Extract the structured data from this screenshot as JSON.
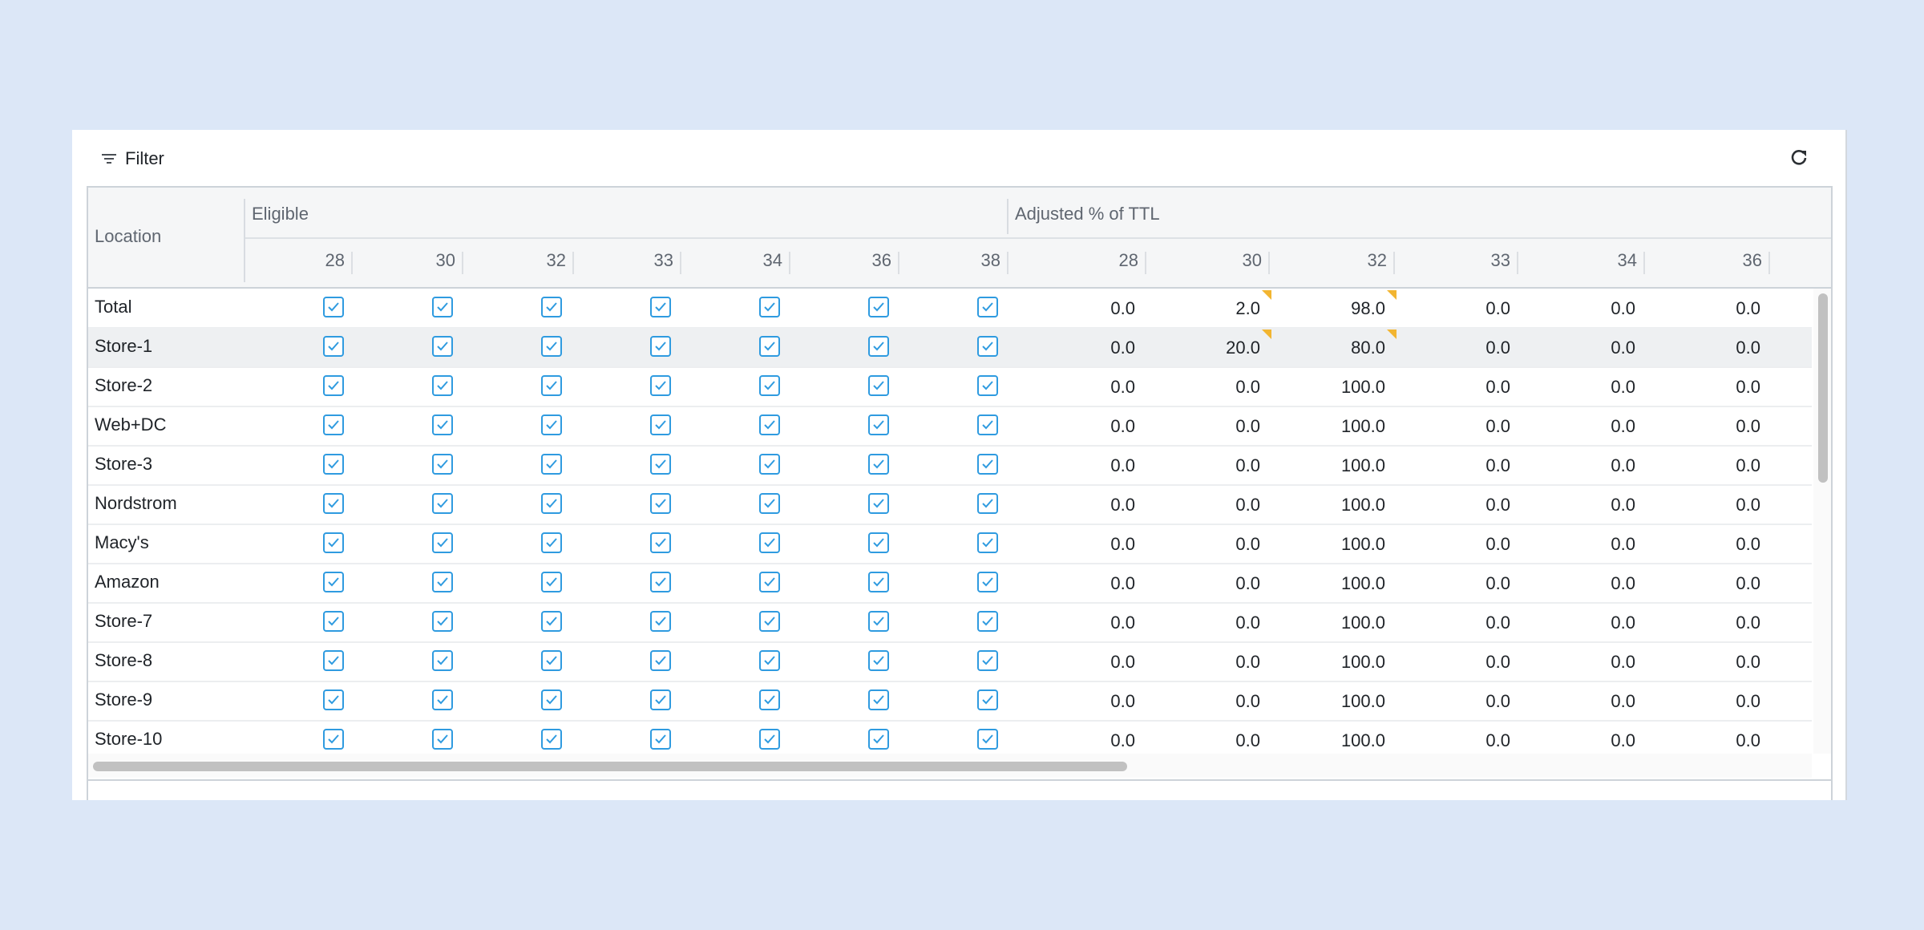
{
  "toolbar": {
    "filter_label": "Filter",
    "filter_icon": "filter-icon",
    "refresh_icon": "refresh-icon"
  },
  "header": {
    "location_label": "Location",
    "groups": [
      "Eligible",
      "Adjusted % of TTL"
    ],
    "eligible_sizes": [
      "28",
      "30",
      "32",
      "33",
      "34",
      "36",
      "38"
    ],
    "adjusted_sizes": [
      "28",
      "30",
      "32",
      "33",
      "34",
      "36"
    ]
  },
  "rows": [
    {
      "location": "Total",
      "eligible": [
        true,
        true,
        true,
        true,
        true,
        true,
        true
      ],
      "adjusted": [
        "0.0",
        "2.0",
        "98.0",
        "0.0",
        "0.0",
        "0.0"
      ],
      "flags": [
        false,
        true,
        true,
        false,
        false,
        false
      ]
    },
    {
      "location": "Store-1",
      "eligible": [
        true,
        true,
        true,
        true,
        true,
        true,
        true
      ],
      "adjusted": [
        "0.0",
        "20.0",
        "80.0",
        "0.0",
        "0.0",
        "0.0"
      ],
      "flags": [
        false,
        true,
        true,
        false,
        false,
        false
      ],
      "selected": true
    },
    {
      "location": "Store-2",
      "eligible": [
        true,
        true,
        true,
        true,
        true,
        true,
        true
      ],
      "adjusted": [
        "0.0",
        "0.0",
        "100.0",
        "0.0",
        "0.0",
        "0.0"
      ],
      "flags": [
        false,
        false,
        false,
        false,
        false,
        false
      ]
    },
    {
      "location": "Web+DC",
      "eligible": [
        true,
        true,
        true,
        true,
        true,
        true,
        true
      ],
      "adjusted": [
        "0.0",
        "0.0",
        "100.0",
        "0.0",
        "0.0",
        "0.0"
      ],
      "flags": [
        false,
        false,
        false,
        false,
        false,
        false
      ]
    },
    {
      "location": "Store-3",
      "eligible": [
        true,
        true,
        true,
        true,
        true,
        true,
        true
      ],
      "adjusted": [
        "0.0",
        "0.0",
        "100.0",
        "0.0",
        "0.0",
        "0.0"
      ],
      "flags": [
        false,
        false,
        false,
        false,
        false,
        false
      ]
    },
    {
      "location": "Nordstrom",
      "eligible": [
        true,
        true,
        true,
        true,
        true,
        true,
        true
      ],
      "adjusted": [
        "0.0",
        "0.0",
        "100.0",
        "0.0",
        "0.0",
        "0.0"
      ],
      "flags": [
        false,
        false,
        false,
        false,
        false,
        false
      ]
    },
    {
      "location": "Macy's",
      "eligible": [
        true,
        true,
        true,
        true,
        true,
        true,
        true
      ],
      "adjusted": [
        "0.0",
        "0.0",
        "100.0",
        "0.0",
        "0.0",
        "0.0"
      ],
      "flags": [
        false,
        false,
        false,
        false,
        false,
        false
      ]
    },
    {
      "location": "Amazon",
      "eligible": [
        true,
        true,
        true,
        true,
        true,
        true,
        true
      ],
      "adjusted": [
        "0.0",
        "0.0",
        "100.0",
        "0.0",
        "0.0",
        "0.0"
      ],
      "flags": [
        false,
        false,
        false,
        false,
        false,
        false
      ]
    },
    {
      "location": "Store-7",
      "eligible": [
        true,
        true,
        true,
        true,
        true,
        true,
        true
      ],
      "adjusted": [
        "0.0",
        "0.0",
        "100.0",
        "0.0",
        "0.0",
        "0.0"
      ],
      "flags": [
        false,
        false,
        false,
        false,
        false,
        false
      ]
    },
    {
      "location": "Store-8",
      "eligible": [
        true,
        true,
        true,
        true,
        true,
        true,
        true
      ],
      "adjusted": [
        "0.0",
        "0.0",
        "100.0",
        "0.0",
        "0.0",
        "0.0"
      ],
      "flags": [
        false,
        false,
        false,
        false,
        false,
        false
      ]
    },
    {
      "location": "Store-9",
      "eligible": [
        true,
        true,
        true,
        true,
        true,
        true,
        true
      ],
      "adjusted": [
        "0.0",
        "0.0",
        "100.0",
        "0.0",
        "0.0",
        "0.0"
      ],
      "flags": [
        false,
        false,
        false,
        false,
        false,
        false
      ]
    },
    {
      "location": "Store-10",
      "eligible": [
        true,
        true,
        true,
        true,
        true,
        true,
        true
      ],
      "adjusted": [
        "0.0",
        "0.0",
        "100.0",
        "0.0",
        "0.0",
        "0.0"
      ],
      "flags": [
        false,
        false,
        false,
        false,
        false,
        false
      ]
    }
  ],
  "colors": {
    "checkbox": "#2f9be0",
    "flag": "#f2b531",
    "selected_row": "#eef0f2"
  }
}
